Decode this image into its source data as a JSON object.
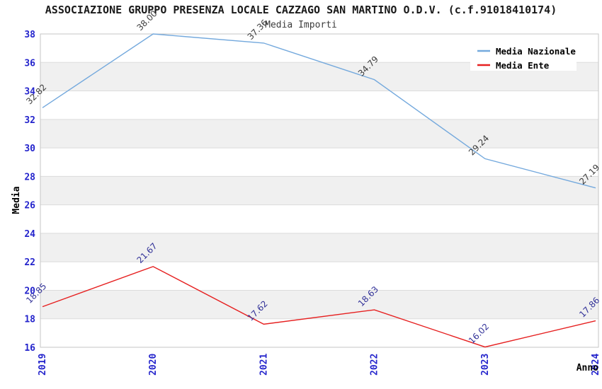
{
  "chart_data": {
    "type": "line",
    "title": "ASSOCIAZIONE GRUPPO PRESENZA LOCALE CAZZAGO SAN MARTINO O.D.V. (c.f.91018410174)",
    "subtitle": "Media Importi",
    "xlabel": "Anno",
    "ylabel": "Media",
    "x_categories": [
      "2019",
      "2020",
      "2021",
      "2022",
      "2023",
      "2024"
    ],
    "series": [
      {
        "name": "Media Nazionale",
        "color": "#74a9dd",
        "label_color": "#3d3d3d",
        "values": [
          32.82,
          38.0,
          37.36,
          34.79,
          29.24,
          27.19
        ],
        "labels": [
          "32.82",
          "38.00",
          "37.36",
          "34.79",
          "29.24",
          "27.19"
        ]
      },
      {
        "name": "Media Ente",
        "color": "#e62020",
        "label_color": "#333399",
        "values": [
          18.85,
          21.67,
          17.62,
          18.63,
          16.02,
          17.86
        ],
        "labels": [
          "18.85",
          "21.67",
          "17.62",
          "18.63",
          "16.02",
          "17.86"
        ]
      }
    ],
    "ylim": [
      16,
      38
    ],
    "ytick_step": 2,
    "yticks": [
      16,
      18,
      20,
      22,
      24,
      26,
      28,
      30,
      32,
      34,
      36,
      38
    ],
    "grid": true,
    "legend_position": "top-right",
    "band_colors": [
      "#ffffff",
      "#f0f0f0"
    ],
    "tick_color": "#2424cc",
    "grid_color": "#dcdcdc",
    "border_color": "#c6c6c6",
    "axis_label_color": "#000000",
    "legend_text_color": "#000000"
  }
}
